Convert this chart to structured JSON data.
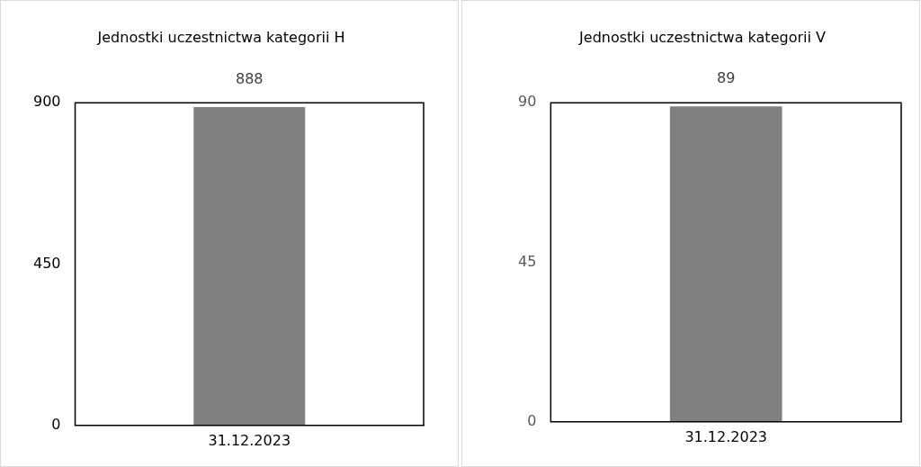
{
  "chart_data": [
    {
      "type": "bar",
      "title": "Jednostki uczestnictwa kategorii H",
      "categories": [
        "31.12.2023"
      ],
      "values": [
        888
      ],
      "color": "#808080",
      "ylim": [
        0,
        900
      ],
      "yticks": [
        0,
        450,
        900
      ],
      "data_labels": true,
      "grid": false
    },
    {
      "type": "bar",
      "title": "Jednostki uczestnictwa kategorii V",
      "categories": [
        "31.12.2023"
      ],
      "values": [
        89
      ],
      "color": "#808080",
      "ylim": [
        0,
        90
      ],
      "yticks": [
        0,
        45,
        90
      ],
      "data_labels": true,
      "grid": false
    }
  ]
}
